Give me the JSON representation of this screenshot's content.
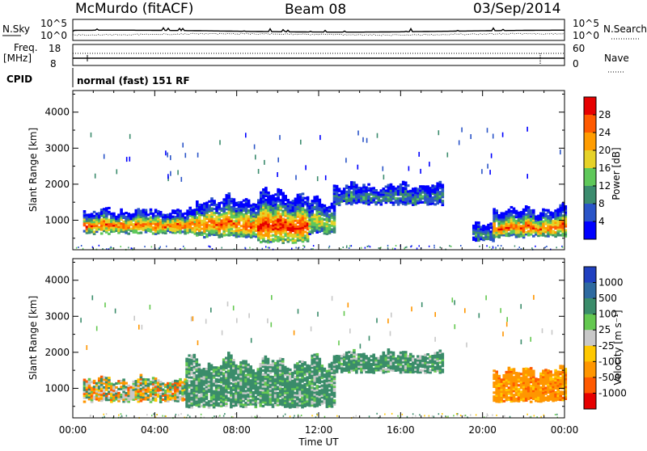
{
  "header": {
    "station": "McMurdo (fitACF)",
    "beam": "Beam 08",
    "date": "03/Sep/2014"
  },
  "noise_panel": {
    "left_label": "N.Sky",
    "left_ticks": [
      "10^5",
      "10^0"
    ],
    "right_label": "N.Search",
    "right_ticks": [
      "10^5",
      "10^0"
    ]
  },
  "freq_panel": {
    "left_label_line1": "Freq.",
    "left_label_line2": "[MHz]",
    "left_ticks": [
      "18",
      "8"
    ],
    "right_label": "Nave",
    "right_ticks": [
      "60",
      "0"
    ]
  },
  "cpid": {
    "label": "CPID",
    "value": "normal (fast) 151 RF"
  },
  "colors": {
    "power_scale": [
      "#0000ff",
      "#2b55c8",
      "#3c8c6e",
      "#5fc85a",
      "#e6d228",
      "#ff9c00",
      "#ff5a00",
      "#e60000"
    ],
    "velocity_scale": [
      "#2040c0",
      "#2e6aa0",
      "#3a8c6a",
      "#64c850",
      "#c8c8c8",
      "#ffc800",
      "#ff9600",
      "#ff5a00",
      "#e60000"
    ]
  },
  "chart_data": [
    {
      "type": "heatmap",
      "title": "Power",
      "xlabel": "",
      "ylabel": "Slant Range [km]",
      "x_ticks": [
        "00:00",
        "04:00",
        "08:00",
        "12:00",
        "16:00",
        "20:00",
        "00:00"
      ],
      "y_ticks": [
        1000,
        2000,
        3000,
        4000
      ],
      "xlim": [
        0,
        24
      ],
      "ylim": [
        180,
        4600
      ],
      "colorbar": {
        "label": "Power [dB]",
        "ticks": [
          4,
          8,
          12,
          16,
          20,
          24,
          28
        ]
      },
      "echo_regions": [
        {
          "t0": 0.5,
          "t1": 6.0,
          "r0": 600,
          "r1": 1400,
          "core": "high"
        },
        {
          "t0": 6.0,
          "t1": 9.0,
          "r0": 500,
          "r1": 1800,
          "core": "high"
        },
        {
          "t0": 9.0,
          "t1": 11.5,
          "r0": 350,
          "r1": 2000,
          "core": "very-high"
        },
        {
          "t0": 11.5,
          "t1": 12.7,
          "r0": 600,
          "r1": 1700,
          "core": "mid"
        },
        {
          "t0": 12.7,
          "t1": 18.0,
          "r0": 1400,
          "r1": 2100,
          "core": "low"
        },
        {
          "t0": 19.5,
          "t1": 20.5,
          "r0": 400,
          "r1": 1000,
          "core": "low"
        },
        {
          "t0": 20.5,
          "t1": 24.0,
          "r0": 500,
          "r1": 1500,
          "core": "high"
        }
      ]
    },
    {
      "type": "heatmap",
      "title": "Velocity",
      "xlabel": "Time UT",
      "ylabel": "Slant Range [km]",
      "x_ticks": [
        "00:00",
        "04:00",
        "08:00",
        "12:00",
        "16:00",
        "20:00",
        "00:00"
      ],
      "y_ticks": [
        1000,
        2000,
        3000,
        4000
      ],
      "xlim": [
        0,
        24
      ],
      "ylim": [
        180,
        4600
      ],
      "colorbar": {
        "label": "Velocity [m s⁻¹]",
        "ticks": [
          1000,
          500,
          100,
          25,
          -25,
          -100,
          -500,
          -1000
        ]
      },
      "echo_regions": [
        {
          "t0": 0.5,
          "t1": 5.5,
          "r0": 600,
          "r1": 1400,
          "velocity": "mixed -100 to 100"
        },
        {
          "t0": 5.5,
          "t1": 12.7,
          "r0": 450,
          "r1": 2000,
          "velocity": "25 to 100"
        },
        {
          "t0": 12.7,
          "t1": 18.0,
          "r0": 1400,
          "r1": 2100,
          "velocity": "25 to 100"
        },
        {
          "t0": 20.5,
          "t1": 24.0,
          "r0": 600,
          "r1": 1700,
          "velocity": "-100 to -500"
        }
      ]
    }
  ]
}
